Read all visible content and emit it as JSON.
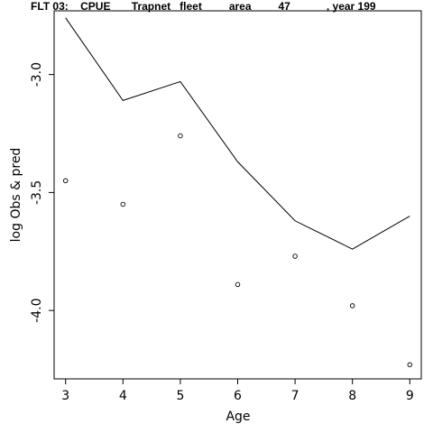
{
  "chart_data": {
    "type": "line",
    "title": "FLT 03:    CPUE       Trapnet   fleet         area         47            , year 199",
    "xlabel": "Age",
    "ylabel": "log Obs & pred",
    "xlim": [
      2.8,
      9.2
    ],
    "ylim": [
      -4.29,
      -2.73
    ],
    "xticks": [
      3,
      4,
      5,
      6,
      7,
      8,
      9
    ],
    "xtick_labels": [
      "3",
      "4",
      "5",
      "6",
      "7",
      "8",
      "9"
    ],
    "yticks": [
      -3.0,
      -3.5,
      -4.0
    ],
    "ytick_labels": [
      "-3.0",
      "-3.5",
      "-4.0"
    ],
    "grid": false,
    "series": [
      {
        "kind": "line",
        "x": [
          3,
          4,
          5,
          6,
          7,
          8,
          9
        ],
        "values": [
          -2.76,
          -3.11,
          -3.03,
          -3.37,
          -3.62,
          -3.74,
          -3.6
        ]
      },
      {
        "kind": "points",
        "x": [
          3,
          4,
          5,
          6,
          7,
          8,
          9
        ],
        "values": [
          -3.45,
          -3.55,
          -3.26,
          -3.89,
          -3.77,
          -3.98,
          -4.23
        ]
      }
    ]
  }
}
